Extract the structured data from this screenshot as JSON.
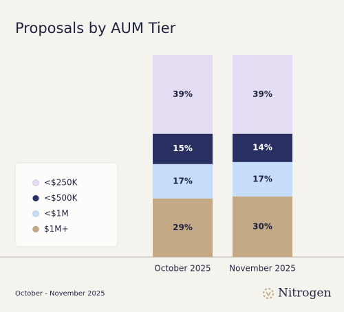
{
  "chart_data": {
    "type": "stacked_bar",
    "title": "Proposals by AUM Tier",
    "categories": [
      "October 2025",
      "November 2025"
    ],
    "series": [
      {
        "name": "<$250K",
        "color": "#e3dcf3",
        "values": [
          39,
          39
        ],
        "value_labels": [
          "39%",
          "39%"
        ]
      },
      {
        "name": "<$500K",
        "color": "#2a2f62",
        "values": [
          15,
          14
        ],
        "value_labels": [
          "15%",
          "14%"
        ]
      },
      {
        "name": "<$1M",
        "color": "#c6ddf9",
        "values": [
          17,
          17
        ],
        "value_labels": [
          "17%",
          "17%"
        ]
      },
      {
        "name": "$1M+",
        "color": "#c4a986",
        "values": [
          29,
          30
        ],
        "value_labels": [
          "29%",
          "30%"
        ]
      }
    ],
    "legend": "left",
    "footnote": "October - November 2025",
    "brand": "Nitrogen"
  }
}
